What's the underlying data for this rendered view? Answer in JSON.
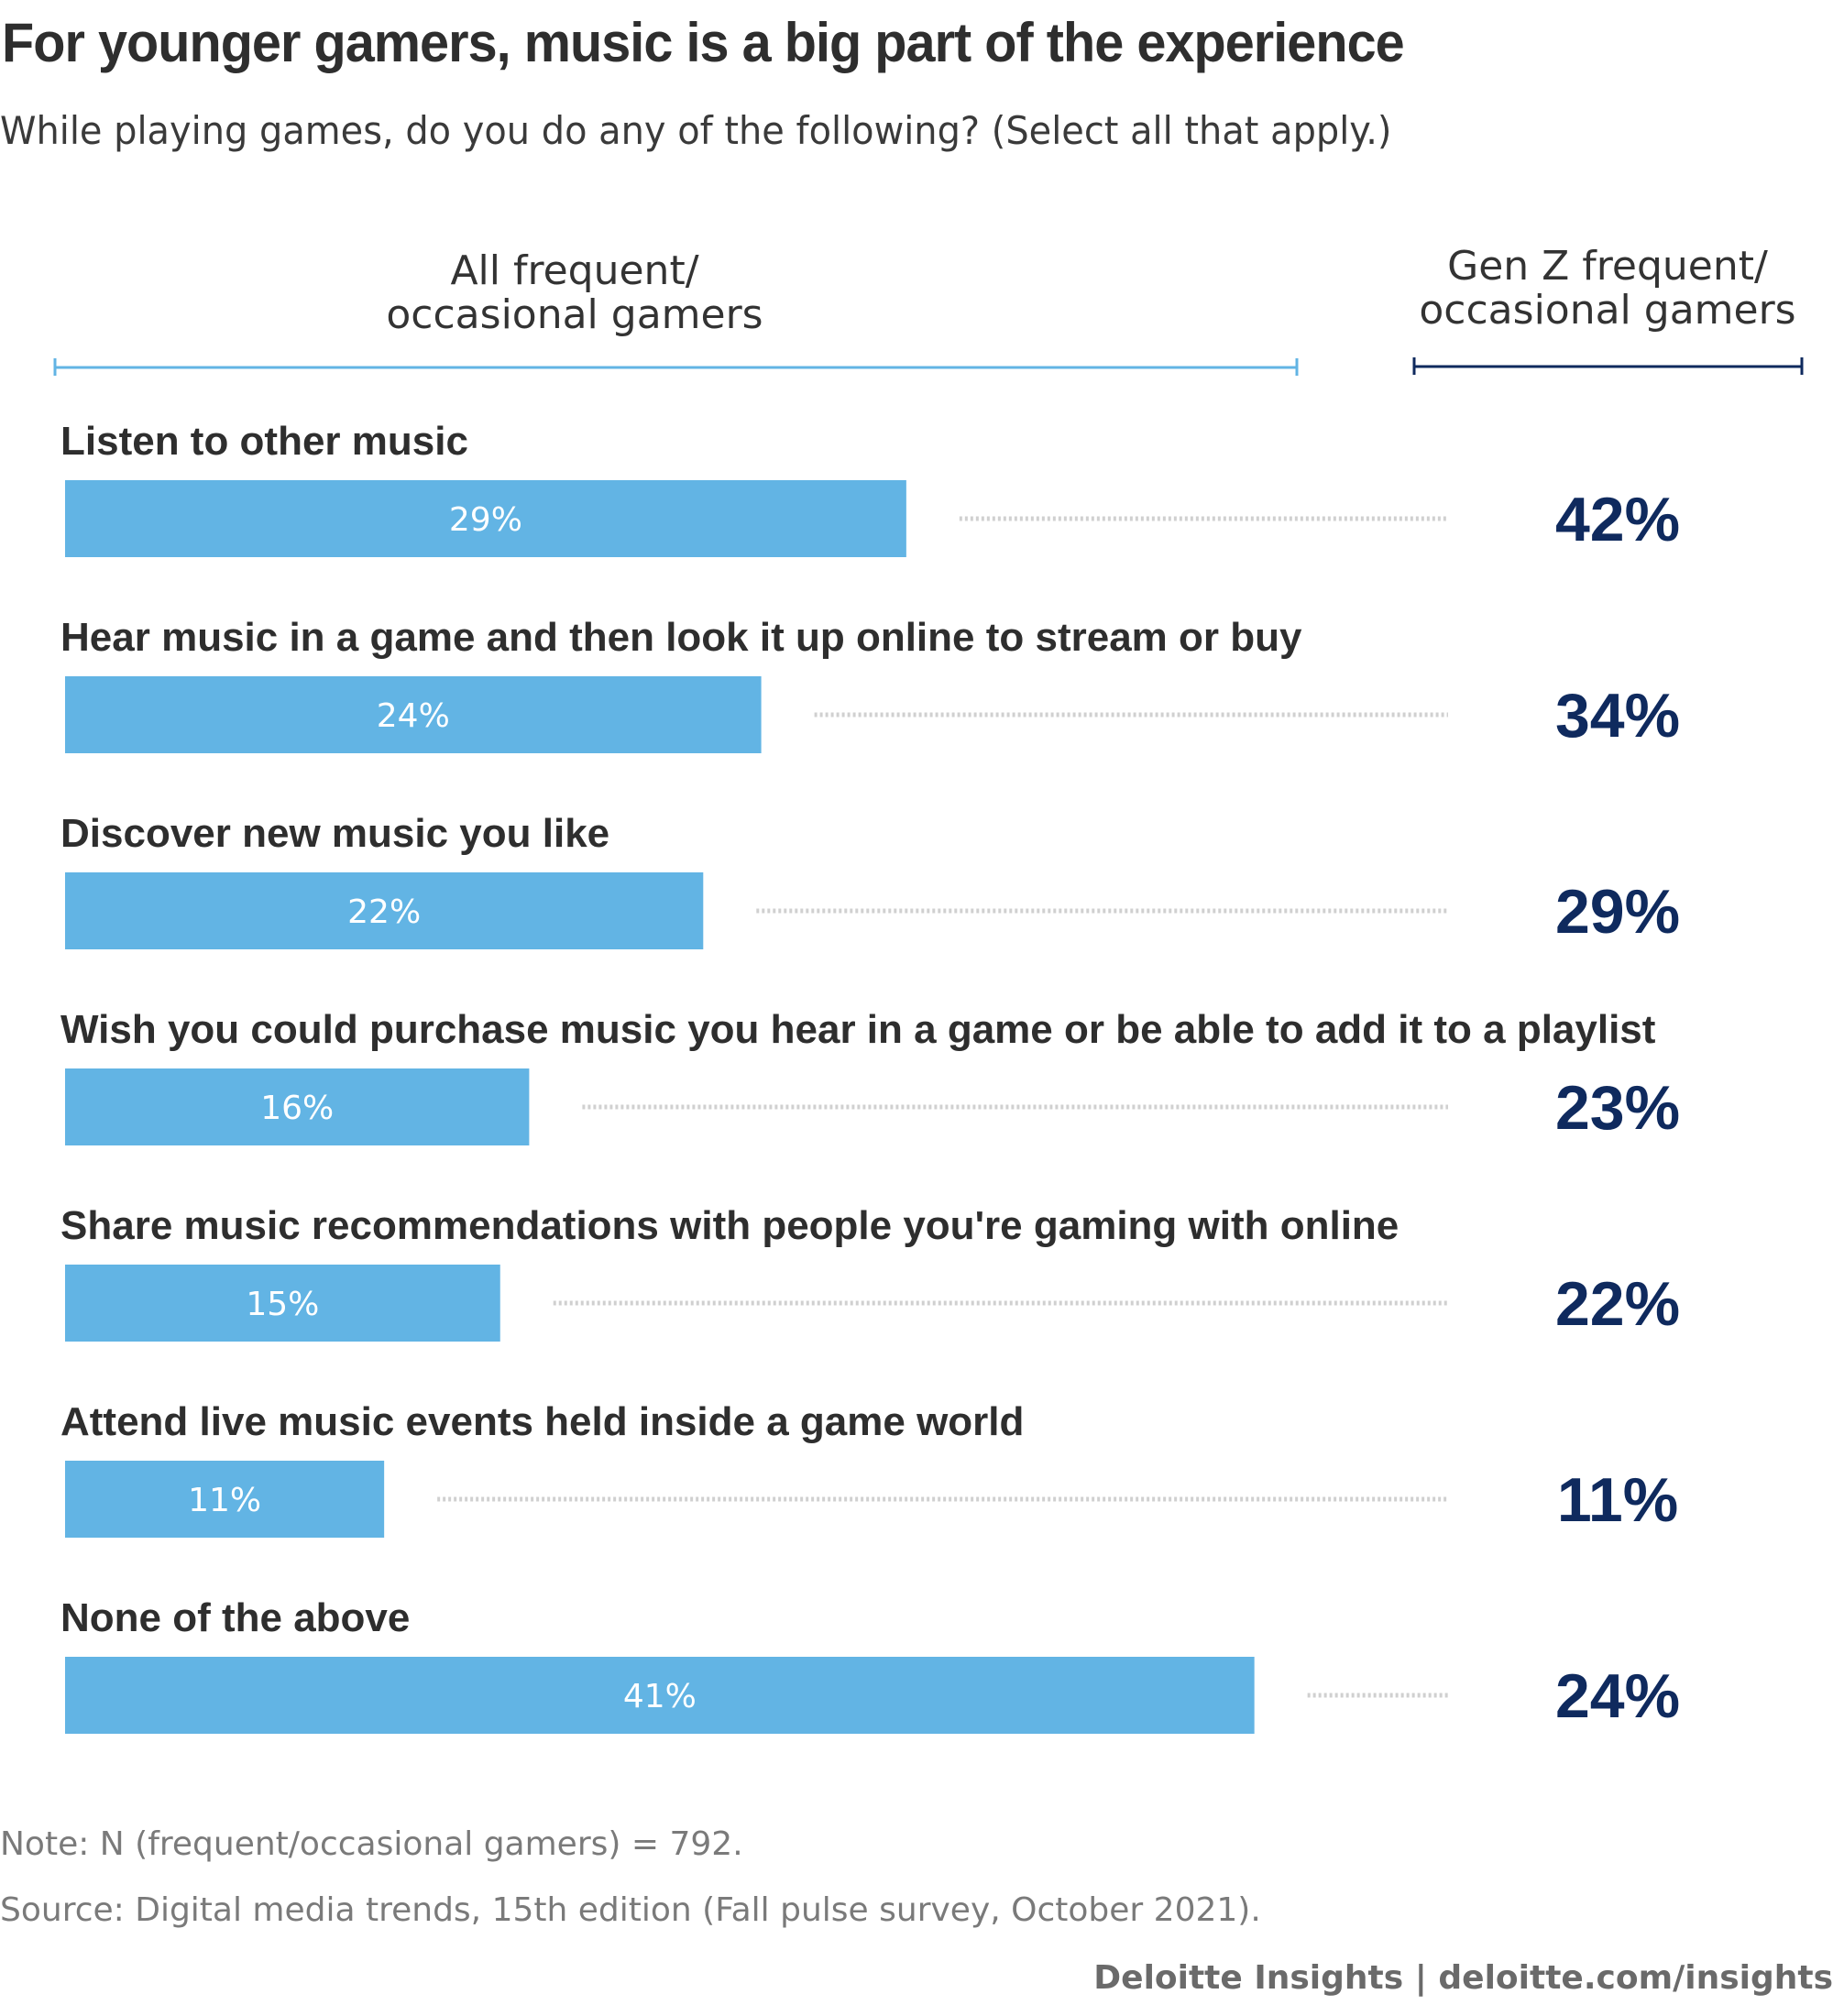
{
  "header": {
    "title": "For younger gamers, music is a big part of the experience",
    "subtitle": "While playing games, do you do any of the following? (Select all that apply.)"
  },
  "columns": {
    "all_line1": "All frequent/",
    "all_line2": "occasional gamers",
    "genz_line1": "Gen Z frequent/",
    "genz_line2": "occasional gamers"
  },
  "notes": {
    "note": "Note: N (frequent/occasional gamers) = 792.",
    "source": "Source: Digital media trends, 15th edition (Fall pulse survey, October 2021)."
  },
  "footer": {
    "credit": "Deloitte Insights | deloitte.com/insights"
  },
  "colors": {
    "bar": "#62b4e4",
    "genz": "#0f2a5e",
    "all_rule": "#62b4e4",
    "genz_rule": "#0f2a5e",
    "dots": "#d0d0d0"
  },
  "chart_data": {
    "type": "bar",
    "title": "For younger gamers, music is a big part of the experience",
    "categories": [
      "Listen to other music",
      "Hear music in a game and then look it up online to stream or buy",
      "Discover new music you like",
      "Wish you could purchase music you hear in a game or be able to add it to a playlist",
      "Share music recommendations with people you're gaming with online",
      "Attend live music events held inside a game world",
      "None of the above"
    ],
    "series": [
      {
        "name": "All frequent/occasional gamers",
        "values": [
          29,
          24,
          22,
          16,
          15,
          11,
          41
        ],
        "labels": [
          "29%",
          "24%",
          "22%",
          "16%",
          "15%",
          "11%",
          "41%"
        ]
      },
      {
        "name": "Gen Z frequent/occasional gamers",
        "values": [
          42,
          34,
          29,
          23,
          22,
          11,
          24
        ],
        "labels": [
          "42%",
          "34%",
          "29%",
          "23%",
          "22%",
          "11%",
          "24%"
        ]
      }
    ],
    "xlabel": "",
    "ylabel": "",
    "xlim": [
      0,
      45
    ],
    "unit": "%"
  }
}
